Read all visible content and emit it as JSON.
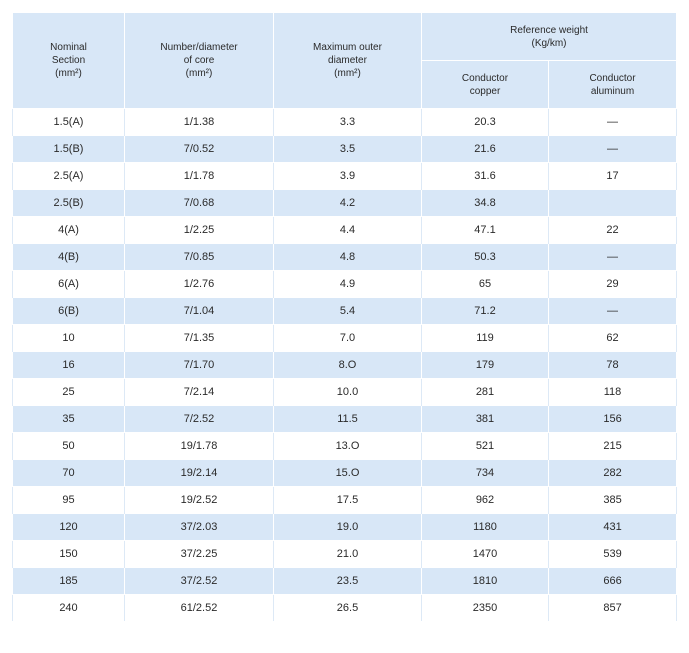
{
  "header": {
    "nominal_section": [
      "Nominal",
      "Section",
      "(mm²)"
    ],
    "number_diameter": [
      "Number/diameter",
      "of core",
      "(mm²)"
    ],
    "max_outer_diameter": [
      "Maximum outer",
      "diameter",
      "(mm²)"
    ],
    "reference_weight": [
      "Reference weight",
      "(Kg/km)"
    ],
    "conductor_copper": [
      "Conductor",
      "copper"
    ],
    "conductor_aluminum": [
      "Conductor",
      "aluminum"
    ]
  },
  "rows": [
    [
      "1.5(A)",
      "1/1.38",
      "3.3",
      "20.3",
      "—"
    ],
    [
      "1.5(B)",
      "7/0.52",
      "3.5",
      "21.6",
      "—"
    ],
    [
      "2.5(A)",
      "1/1.78",
      "3.9",
      "31.6",
      "17"
    ],
    [
      "2.5(B)",
      "7/0.68",
      "4.2",
      "34.8",
      ""
    ],
    [
      "4(A)",
      "1/2.25",
      "4.4",
      "47.1",
      "22"
    ],
    [
      "4(B)",
      "7/0.85",
      "4.8",
      "50.3",
      "—"
    ],
    [
      "6(A)",
      "1/2.76",
      "4.9",
      "65",
      "29"
    ],
    [
      "6(B)",
      "7/1.04",
      "5.4",
      "71.2",
      "—"
    ],
    [
      "10",
      "7/1.35",
      "7.0",
      "119",
      "62"
    ],
    [
      "16",
      "7/1.70",
      "8.O",
      "179",
      "78"
    ],
    [
      "25",
      "7/2.14",
      "10.0",
      "281",
      "118"
    ],
    [
      "35",
      "7/2.52",
      "11.5",
      "381",
      "156"
    ],
    [
      "50",
      "19/1.78",
      "13.O",
      "521",
      "215"
    ],
    [
      "70",
      "19/2.14",
      "15.O",
      "734",
      "282"
    ],
    [
      "95",
      "19/2.52",
      "17.5",
      "962",
      "385"
    ],
    [
      "120",
      "37/2.03",
      "19.0",
      "1180",
      "431"
    ],
    [
      "150",
      "37/2.25",
      "21.0",
      "1470",
      "539"
    ],
    [
      "185",
      "37/2.52",
      "23.5",
      "1810",
      "666"
    ],
    [
      "240",
      "61/2.52",
      "26.5",
      "2350",
      "857"
    ]
  ],
  "colors": {
    "header_bg": "#d8e7f7",
    "stripe_bg": "#d8e7f7",
    "row_bg": "#ffffff"
  }
}
